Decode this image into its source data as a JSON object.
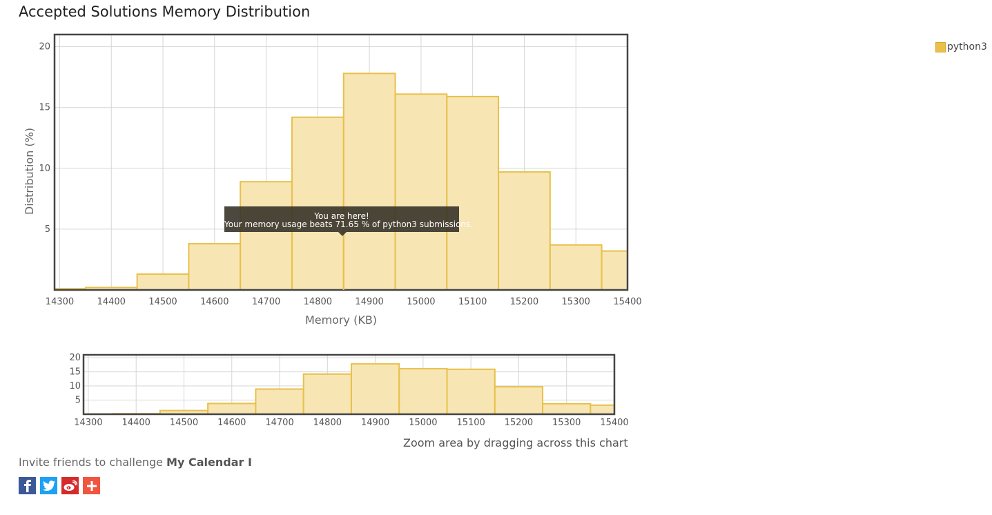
{
  "page": {
    "title": "Accepted Solutions Memory Distribution",
    "zoom_hint": "Zoom area by dragging across this chart",
    "invite_prefix": "Invite friends to challenge ",
    "invite_problem": "My Calendar I"
  },
  "tooltip": {
    "line1": "You are here!",
    "line2": "Your memory usage beats 71.65 % of python3 submissions."
  },
  "legend": {
    "label": "python3",
    "color": "#e8c04a"
  },
  "share": [
    {
      "name": "facebook-share-button",
      "icon": "facebook-icon",
      "color": "#3b5998"
    },
    {
      "name": "twitter-share-button",
      "icon": "twitter-icon",
      "color": "#1da1f2"
    },
    {
      "name": "weibo-share-button",
      "icon": "weibo-icon",
      "color": "#d52b2b"
    },
    {
      "name": "more-share-button",
      "icon": "plus-icon",
      "color": "#f0553f"
    }
  ],
  "chart_data": [
    {
      "type": "bar",
      "title": "",
      "xlabel": "Memory (KB)",
      "ylabel": "Distribution (%)",
      "xlim": [
        14290,
        15400
      ],
      "ylim": [
        0,
        21
      ],
      "xticks": [
        14300,
        14400,
        14500,
        14600,
        14700,
        14800,
        14900,
        15000,
        15100,
        15200,
        15300,
        15400
      ],
      "yticks": [
        5,
        10,
        15,
        20
      ],
      "grid": true,
      "legend_position": "top-right",
      "series": [
        {
          "name": "python3",
          "color": "#e8c04a",
          "bins": [
            {
              "x0": 14290,
              "x1": 14350,
              "value": 0.1
            },
            {
              "x0": 14350,
              "x1": 14450,
              "value": 0.2
            },
            {
              "x0": 14450,
              "x1": 14550,
              "value": 1.3
            },
            {
              "x0": 14550,
              "x1": 14650,
              "value": 3.8
            },
            {
              "x0": 14650,
              "x1": 14750,
              "value": 8.9
            },
            {
              "x0": 14750,
              "x1": 14850,
              "value": 14.2
            },
            {
              "x0": 14850,
              "x1": 14950,
              "value": 17.8
            },
            {
              "x0": 14950,
              "x1": 15050,
              "value": 16.1
            },
            {
              "x0": 15050,
              "x1": 15150,
              "value": 15.9
            },
            {
              "x0": 15150,
              "x1": 15250,
              "value": 9.7
            },
            {
              "x0": 15250,
              "x1": 15350,
              "value": 3.7
            },
            {
              "x0": 15350,
              "x1": 15400,
              "value": 3.2
            }
          ]
        }
      ],
      "marker": {
        "x": 14850
      }
    }
  ]
}
